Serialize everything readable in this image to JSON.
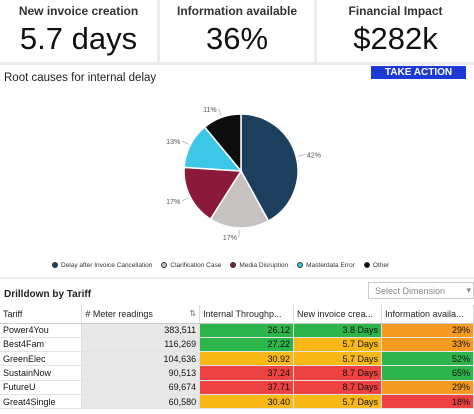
{
  "kpis": [
    {
      "title": "New invoice creation",
      "value": "5.7 days"
    },
    {
      "title": "Information available",
      "value": "36%"
    },
    {
      "title": "Financial Impact",
      "value": "$282k"
    }
  ],
  "root_causes": {
    "title": "Root causes for internal delay",
    "take_action_label": "TAKE ACTION"
  },
  "chart_data": {
    "type": "pie",
    "title": "Root causes for internal delay",
    "labels": [
      "Delay after Invoice Cancellation",
      "Clarification Case",
      "Media Disruption",
      "Masterdata Error",
      "Other"
    ],
    "values": [
      42,
      17,
      17,
      13,
      11
    ],
    "value_labels": [
      "42%",
      "17%",
      "17%",
      "13%",
      "11%"
    ],
    "colors": [
      "#1d3f5e",
      "#c7c2c2",
      "#8b1a3a",
      "#3cc7e8",
      "#0d0d0d"
    ],
    "legend_position": "bottom"
  },
  "drilldown": {
    "title": "Drilldown by Tariff",
    "dimension_placeholder": "Select Dimension",
    "columns": [
      "Tariff",
      "# Meter readings",
      "Internal Throughp...",
      "New invoice crea...",
      "Information availa..."
    ],
    "rows": [
      {
        "tariff": "Power4You",
        "meter": "383,511",
        "throughput": "26.12",
        "tp_status": "g",
        "invoice": "3.8 Days",
        "inv_status": "g",
        "info": "29%",
        "info_status": "o"
      },
      {
        "tariff": "Best4Fam",
        "meter": "116,269",
        "throughput": "27.22",
        "tp_status": "g",
        "invoice": "5.7 Days",
        "inv_status": "y",
        "info": "33%",
        "info_status": "o"
      },
      {
        "tariff": "GreenElec",
        "meter": "104,636",
        "throughput": "30.92",
        "tp_status": "y",
        "invoice": "5.7 Days",
        "inv_status": "y",
        "info": "52%",
        "info_status": "g"
      },
      {
        "tariff": "SustainNow",
        "meter": "90,513",
        "throughput": "37.24",
        "tp_status": "r",
        "invoice": "8.7 Days",
        "inv_status": "r",
        "info": "65%",
        "info_status": "g"
      },
      {
        "tariff": "FutureU",
        "meter": "69,674",
        "throughput": "37.71",
        "tp_status": "r",
        "invoice": "8.7 Days",
        "inv_status": "r",
        "info": "29%",
        "info_status": "o"
      },
      {
        "tariff": "Great4Single",
        "meter": "60,580",
        "throughput": "30.40",
        "tp_status": "y",
        "invoice": "5.7 Days",
        "inv_status": "y",
        "info": "18%",
        "info_status": "r"
      }
    ]
  }
}
